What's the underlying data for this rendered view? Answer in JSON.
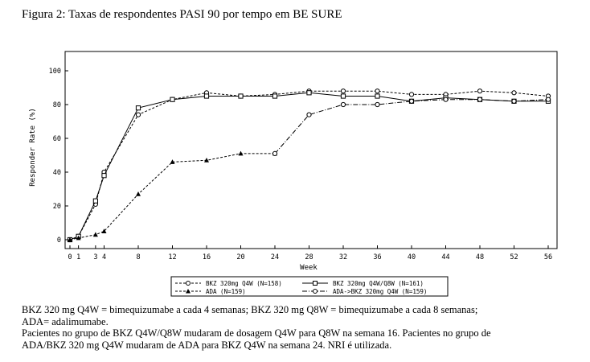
{
  "figure_title": "Figura 2: Taxas de respondentes PASI 90 por tempo em BE SURE",
  "chart_data": {
    "type": "line",
    "xlabel": "Week",
    "ylabel": "Responder Rate (%)",
    "xlim": [
      0,
      56
    ],
    "ylim": [
      0,
      100
    ],
    "x_ticks": [
      0,
      1,
      3,
      4,
      8,
      12,
      16,
      20,
      24,
      28,
      32,
      36,
      40,
      44,
      48,
      52,
      56
    ],
    "y_ticks": [
      0,
      20,
      40,
      60,
      80,
      100
    ],
    "grid": false,
    "legend_position": "bottom",
    "series": [
      {
        "name": "BKZ 320mg Q4W (N=158)",
        "marker": "circle",
        "line_style": "dashed",
        "x": [
          0,
          1,
          3,
          4,
          8,
          12,
          16,
          20,
          24,
          28,
          32,
          36,
          40,
          44,
          48,
          52,
          56
        ],
        "values": [
          0,
          2,
          21,
          40,
          74,
          83,
          87,
          85,
          86,
          88,
          88,
          88,
          86,
          86,
          88,
          87,
          85
        ]
      },
      {
        "name": "BKZ 320mg Q4W/Q8W (N=161)",
        "marker": "square",
        "line_style": "solid",
        "x": [
          0,
          1,
          3,
          4,
          8,
          12,
          16,
          20,
          24,
          28,
          32,
          36,
          40,
          44,
          48,
          52,
          56
        ],
        "values": [
          0,
          2,
          23,
          38,
          78,
          83,
          85,
          85,
          85,
          87,
          85,
          85,
          82,
          84,
          83,
          82,
          82
        ]
      },
      {
        "name": "ADA (N=159)",
        "marker": "triangle",
        "line_style": "dashed",
        "x": [
          0,
          1,
          3,
          4,
          8,
          12,
          16,
          20,
          24
        ],
        "values": [
          0,
          1,
          3,
          5,
          27,
          46,
          47,
          51,
          51
        ]
      },
      {
        "name": "ADA->BKZ 320mg Q4W (N=159)",
        "marker": "circle",
        "line_style": "dashed",
        "x": [
          24,
          28,
          32,
          36,
          40,
          44,
          48,
          52,
          56
        ],
        "values": [
          51,
          74,
          80,
          80,
          82,
          83,
          83,
          82,
          83
        ]
      }
    ]
  },
  "footnotes": [
    "BKZ 320 mg Q4W = bimequizumabe a cada 4 semanas; BKZ 320 mg Q8W = bimequizumabe a cada 8 semanas;",
    "ADA= adalimumabe.",
    "Pacientes no grupo de BKZ Q4W/Q8W mudaram de dosagem Q4W para Q8W na semana 16. Pacientes no grupo de",
    "ADA/BKZ 320 mg Q4W mudaram de ADA para BKZ Q4W na semana 24. NRI é utilizada."
  ]
}
